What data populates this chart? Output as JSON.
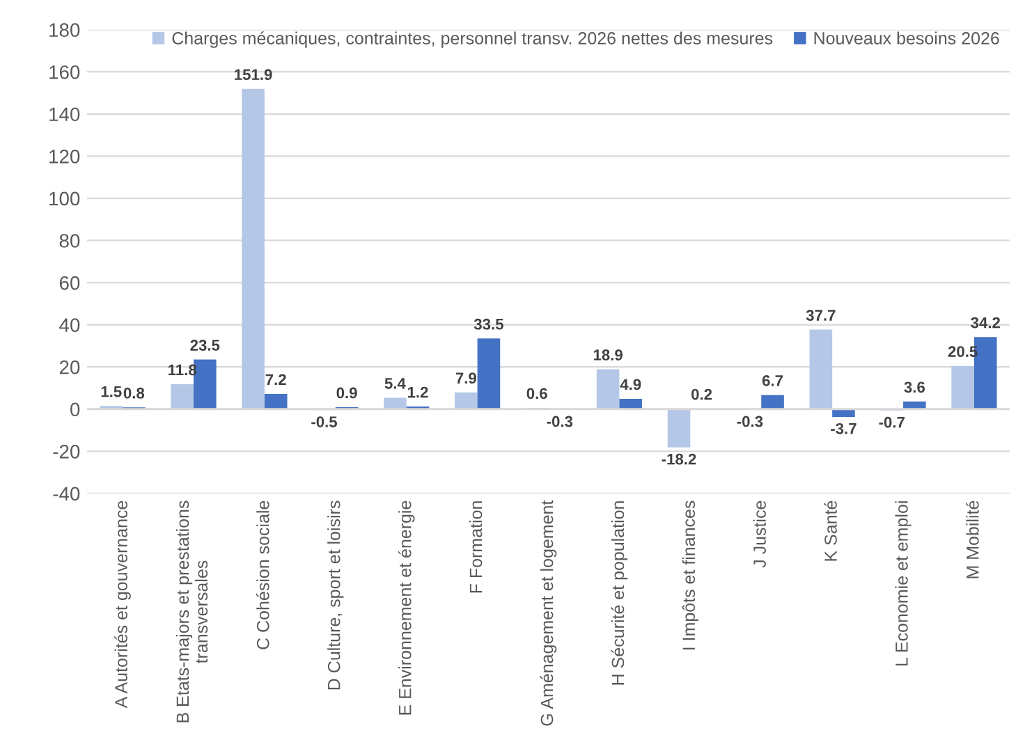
{
  "chart_data": {
    "type": "bar",
    "categories": [
      "A Autorités et gouvernance",
      "B Etats-majors et prestations\ntransversales",
      "C Cohésion sociale",
      "D Culture, sport et loisirs",
      "E Environnement et énergie",
      "F Formation",
      "G Aménagement et logement",
      "H Sécurité et population",
      "I Impôts et finances",
      "J Justice",
      "K Santé",
      "L Economie et emploi",
      "M Mobilité"
    ],
    "series": [
      {
        "name": "Charges mécaniques, contraintes, personnel transv. 2026 nettes des mesures",
        "color": "#b4c7e7",
        "values": [
          1.5,
          11.8,
          151.9,
          -0.5,
          5.4,
          7.9,
          0.6,
          18.9,
          -18.2,
          -0.3,
          37.7,
          -0.7,
          20.5
        ]
      },
      {
        "name": "Nouveaux besoins 2026",
        "color": "#4472c4",
        "values": [
          0.8,
          23.5,
          7.2,
          0.9,
          1.2,
          33.5,
          -0.3,
          4.9,
          0.2,
          6.7,
          -3.7,
          3.6,
          34.2
        ]
      }
    ],
    "ylim": [
      -40,
      180
    ],
    "yticks": [
      -40,
      -20,
      0,
      20,
      40,
      60,
      80,
      100,
      120,
      140,
      160,
      180
    ],
    "grid": "y",
    "legend": "top",
    "data_labels": true
  }
}
